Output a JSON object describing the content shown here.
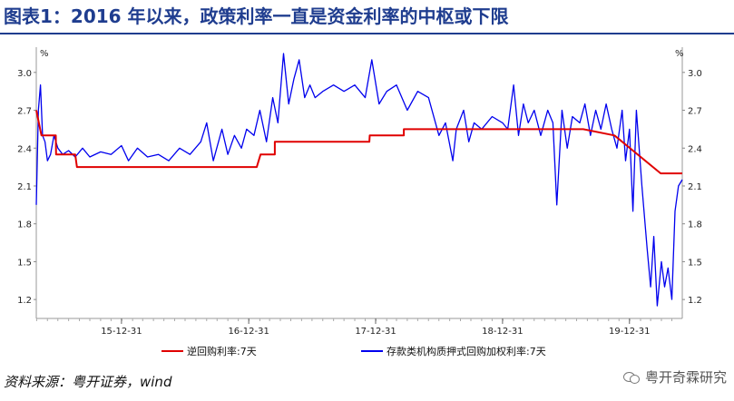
{
  "header": {
    "title": "图表1：2016 年以来，政策利率一直是资金利率的中枢或下限"
  },
  "footer": {
    "source": "资料来源：粤开证券，wind",
    "watermark": "粤开奇霖研究"
  },
  "colors": {
    "title": "#1f3d8f",
    "policy_rate": "#e00000",
    "pledged_repo": "#0000ee"
  },
  "chart_data": {
    "type": "line",
    "title": "图表1：2016 年以来，政策利率一直是资金利率的中枢或下限",
    "unit_left": "%",
    "unit_right": "%",
    "ylim": [
      1.05,
      3.2
    ],
    "y_ticks": [
      "1.2",
      "1.5",
      "1.8",
      "2.1",
      "2.4",
      "2.7",
      "3.0"
    ],
    "x_tick_labels": [
      "15-12-31",
      "16-12-31",
      "17-12-31",
      "18-12-31",
      "19-12-31"
    ],
    "x_range": [
      "2015-04-30",
      "2020-05-31"
    ],
    "legend_position": "bottom",
    "series": [
      {
        "name": "逆回购利率:7天",
        "color": "#e00000",
        "points": [
          [
            "2015-04-30",
            2.7
          ],
          [
            "2015-05-15",
            2.5
          ],
          [
            "2015-06-25",
            2.5
          ],
          [
            "2015-06-26",
            2.35
          ],
          [
            "2015-08-20",
            2.35
          ],
          [
            "2015-08-25",
            2.25
          ],
          [
            "2017-01-23",
            2.25
          ],
          [
            "2017-02-03",
            2.35
          ],
          [
            "2017-03-16",
            2.35
          ],
          [
            "2017-03-16",
            2.45
          ],
          [
            "2017-12-13",
            2.45
          ],
          [
            "2017-12-14",
            2.5
          ],
          [
            "2018-03-22",
            2.5
          ],
          [
            "2018-03-22",
            2.55
          ],
          [
            "2019-08-20",
            2.55
          ],
          [
            "2019-11-18",
            2.5
          ],
          [
            "2020-03-30",
            2.2
          ],
          [
            "2020-05-31",
            2.2
          ]
        ]
      },
      {
        "name": "存款类机构质押式回购加权利率:7天",
        "color": "#0000ee",
        "points": [
          [
            "2015-04-30",
            1.95
          ],
          [
            "2015-05-06",
            2.7
          ],
          [
            "2015-05-12",
            2.9
          ],
          [
            "2015-05-18",
            2.5
          ],
          [
            "2015-05-25",
            2.45
          ],
          [
            "2015-06-01",
            2.3
          ],
          [
            "2015-06-10",
            2.35
          ],
          [
            "2015-06-20",
            2.5
          ],
          [
            "2015-07-01",
            2.4
          ],
          [
            "2015-07-15",
            2.35
          ],
          [
            "2015-08-01",
            2.38
          ],
          [
            "2015-08-20",
            2.33
          ],
          [
            "2015-09-10",
            2.4
          ],
          [
            "2015-10-01",
            2.33
          ],
          [
            "2015-11-01",
            2.37
          ],
          [
            "2015-12-01",
            2.35
          ],
          [
            "2015-12-31",
            2.42
          ],
          [
            "2016-01-20",
            2.3
          ],
          [
            "2016-02-15",
            2.4
          ],
          [
            "2016-03-15",
            2.33
          ],
          [
            "2016-04-15",
            2.35
          ],
          [
            "2016-05-15",
            2.3
          ],
          [
            "2016-06-15",
            2.4
          ],
          [
            "2016-07-15",
            2.35
          ],
          [
            "2016-08-15",
            2.45
          ],
          [
            "2016-09-01",
            2.6
          ],
          [
            "2016-09-20",
            2.3
          ],
          [
            "2016-10-15",
            2.55
          ],
          [
            "2016-11-01",
            2.35
          ],
          [
            "2016-11-20",
            2.5
          ],
          [
            "2016-12-10",
            2.4
          ],
          [
            "2016-12-25",
            2.55
          ],
          [
            "2017-01-15",
            2.5
          ],
          [
            "2017-02-01",
            2.7
          ],
          [
            "2017-02-20",
            2.45
          ],
          [
            "2017-03-10",
            2.8
          ],
          [
            "2017-03-25",
            2.6
          ],
          [
            "2017-04-10",
            3.15
          ],
          [
            "2017-04-25",
            2.75
          ],
          [
            "2017-05-10",
            2.95
          ],
          [
            "2017-05-25",
            3.1
          ],
          [
            "2017-06-10",
            2.8
          ],
          [
            "2017-06-25",
            2.9
          ],
          [
            "2017-07-10",
            2.8
          ],
          [
            "2017-08-01",
            2.85
          ],
          [
            "2017-09-01",
            2.9
          ],
          [
            "2017-10-01",
            2.85
          ],
          [
            "2017-11-01",
            2.9
          ],
          [
            "2017-12-01",
            2.8
          ],
          [
            "2017-12-20",
            3.1
          ],
          [
            "2018-01-10",
            2.75
          ],
          [
            "2018-02-01",
            2.85
          ],
          [
            "2018-03-01",
            2.9
          ],
          [
            "2018-04-01",
            2.7
          ],
          [
            "2018-05-01",
            2.85
          ],
          [
            "2018-06-01",
            2.8
          ],
          [
            "2018-07-01",
            2.5
          ],
          [
            "2018-07-20",
            2.6
          ],
          [
            "2018-08-10",
            2.3
          ],
          [
            "2018-08-20",
            2.55
          ],
          [
            "2018-09-10",
            2.7
          ],
          [
            "2018-09-25",
            2.45
          ],
          [
            "2018-10-10",
            2.6
          ],
          [
            "2018-11-01",
            2.55
          ],
          [
            "2018-12-01",
            2.65
          ],
          [
            "2018-12-31",
            2.6
          ],
          [
            "2019-01-15",
            2.55
          ],
          [
            "2019-02-01",
            2.9
          ],
          [
            "2019-02-15",
            2.5
          ],
          [
            "2019-03-01",
            2.75
          ],
          [
            "2019-03-15",
            2.6
          ],
          [
            "2019-04-01",
            2.7
          ],
          [
            "2019-04-20",
            2.5
          ],
          [
            "2019-05-10",
            2.7
          ],
          [
            "2019-05-25",
            2.6
          ],
          [
            "2019-06-05",
            1.95
          ],
          [
            "2019-06-20",
            2.7
          ],
          [
            "2019-07-05",
            2.4
          ],
          [
            "2019-07-20",
            2.65
          ],
          [
            "2019-08-10",
            2.6
          ],
          [
            "2019-08-25",
            2.75
          ],
          [
            "2019-09-10",
            2.5
          ],
          [
            "2019-09-25",
            2.7
          ],
          [
            "2019-10-10",
            2.55
          ],
          [
            "2019-10-25",
            2.75
          ],
          [
            "2019-11-10",
            2.55
          ],
          [
            "2019-11-25",
            2.4
          ],
          [
            "2019-12-10",
            2.7
          ],
          [
            "2019-12-20",
            2.3
          ],
          [
            "2019-12-31",
            2.55
          ],
          [
            "2020-01-10",
            1.9
          ],
          [
            "2020-01-20",
            2.7
          ],
          [
            "2020-02-05",
            2.1
          ],
          [
            "2020-02-20",
            1.6
          ],
          [
            "2020-03-01",
            1.3
          ],
          [
            "2020-03-10",
            1.7
          ],
          [
            "2020-03-20",
            1.15
          ],
          [
            "2020-04-01",
            1.5
          ],
          [
            "2020-04-10",
            1.3
          ],
          [
            "2020-04-20",
            1.45
          ],
          [
            "2020-05-01",
            1.2
          ],
          [
            "2020-05-10",
            1.9
          ],
          [
            "2020-05-20",
            2.1
          ],
          [
            "2020-05-31",
            2.15
          ]
        ]
      }
    ]
  }
}
